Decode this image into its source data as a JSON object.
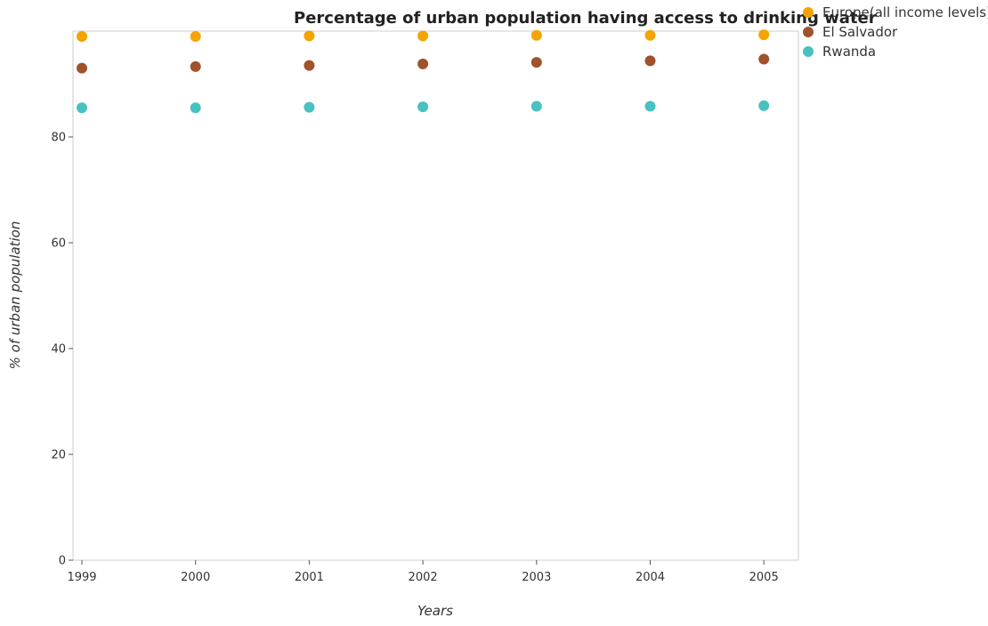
{
  "chart_data": {
    "type": "scatter",
    "title": "Percentage of urban population having access to drinking water",
    "xlabel": "Years",
    "ylabel": "% of urban population",
    "x": [
      "1999",
      "2000",
      "2001",
      "2002",
      "2003",
      "2004",
      "2005"
    ],
    "ylim": [
      0,
      100
    ],
    "yticks": [
      0,
      20,
      40,
      60,
      80
    ],
    "grid": false,
    "legend_position": "top-right",
    "series": [
      {
        "name": "Europe(all income levels)",
        "color": "#f5a300",
        "values": [
          99.0,
          99.0,
          99.1,
          99.1,
          99.2,
          99.2,
          99.3
        ]
      },
      {
        "name": "El Salvador",
        "color": "#a0522d",
        "values": [
          93.0,
          93.3,
          93.5,
          93.8,
          94.1,
          94.4,
          94.7
        ]
      },
      {
        "name": "Rwanda",
        "color": "#48c1c1",
        "values": [
          85.5,
          85.5,
          85.6,
          85.7,
          85.8,
          85.8,
          85.9
        ]
      }
    ]
  }
}
